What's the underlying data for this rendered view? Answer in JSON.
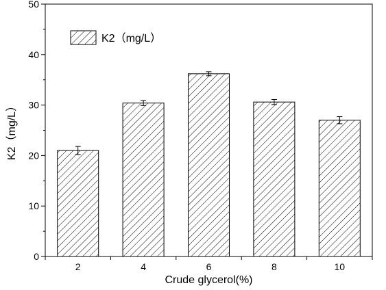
{
  "chart_data": {
    "type": "bar",
    "title": "",
    "xlabel": "Crude glycerol(%)",
    "ylabel": "K2（mg/L）",
    "categories": [
      "2",
      "4",
      "6",
      "8",
      "10"
    ],
    "series": [
      {
        "name": "K2（mg/L）",
        "values": [
          21.0,
          30.4,
          36.2,
          30.6,
          27.0
        ],
        "errors": [
          0.8,
          0.5,
          0.4,
          0.5,
          0.7
        ]
      }
    ],
    "ylim": [
      0,
      50
    ],
    "yticks": [
      "0",
      "10",
      "20",
      "30",
      "40",
      "50"
    ],
    "grid": false,
    "legend_position": "top-left",
    "bar_fill": "hatched",
    "colors": {
      "bar_stroke": "#000000",
      "hatch": "#000000",
      "background": "#ffffff"
    }
  }
}
